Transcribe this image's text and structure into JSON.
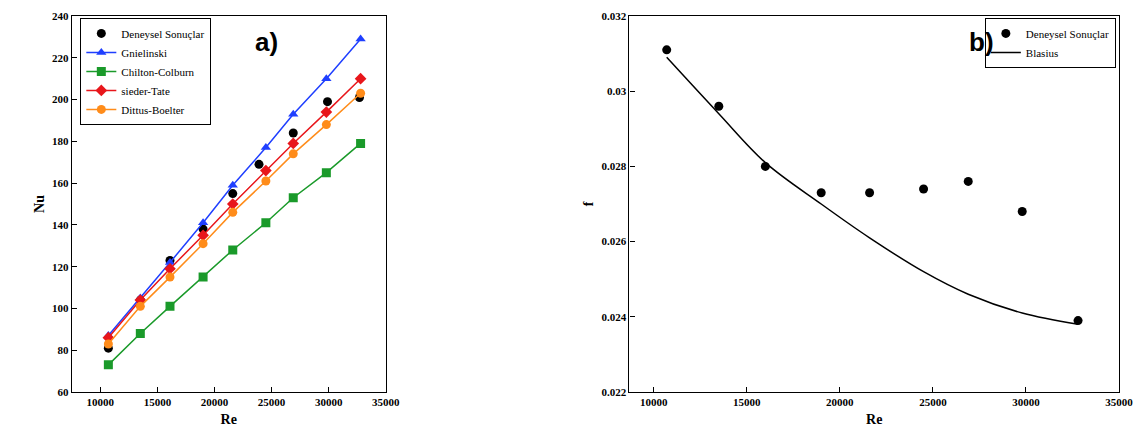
{
  "chart_data": [
    {
      "type": "line",
      "annotation": "a)",
      "x_label": "Re",
      "y_label": "Nu",
      "xlim": [
        7500,
        35000
      ],
      "xticks": [
        10000,
        15000,
        20000,
        25000,
        30000,
        35000
      ],
      "ylim": [
        60,
        240
      ],
      "yticks": [
        60,
        80,
        100,
        120,
        140,
        160,
        180,
        200,
        220,
        240
      ],
      "grid": false,
      "legend": "upper left",
      "series": [
        {
          "name": "Deneysel Sonuçlar",
          "color": "#000000",
          "marker": "circle",
          "line_style": "none",
          "x": [
            10700,
            13500,
            16100,
            19000,
            21600,
            23900,
            26900,
            29900,
            32700
          ],
          "values": [
            81,
            104,
            123,
            138,
            155,
            169,
            184,
            199,
            201
          ]
        },
        {
          "name": "Gnielinski",
          "color": "#1f3fff",
          "marker": "triangle-up",
          "line_style": "solid",
          "x": [
            10700,
            13500,
            16100,
            19000,
            21600,
            24500,
            26900,
            29800,
            32800
          ],
          "values": [
            87,
            105,
            122,
            141,
            159,
            177,
            193,
            210,
            229
          ]
        },
        {
          "name": "Chilton-Colburn",
          "color": "#1a9a2a",
          "marker": "square",
          "line_style": "solid",
          "x": [
            10700,
            13500,
            16100,
            19000,
            21600,
            24500,
            26900,
            29800,
            32800
          ],
          "values": [
            73,
            88,
            101,
            115,
            128,
            141,
            153,
            165,
            179
          ]
        },
        {
          "name": "sieder-Tate",
          "color": "#e8161b",
          "marker": "diamond",
          "line_style": "solid",
          "x": [
            10700,
            13500,
            16100,
            19000,
            21600,
            24500,
            26900,
            29800,
            32800
          ],
          "values": [
            86,
            104,
            119,
            135,
            150,
            166,
            179,
            194,
            210
          ]
        },
        {
          "name": "Dittus-Boelter",
          "color": "#ff8c1a",
          "marker": "circle",
          "line_style": "solid",
          "x": [
            10700,
            13500,
            16100,
            19000,
            21600,
            24500,
            26900,
            29800,
            32800
          ],
          "values": [
            83,
            101,
            115,
            131,
            146,
            161,
            174,
            188,
            203
          ]
        }
      ]
    },
    {
      "type": "line",
      "annotation": "b)",
      "x_label": "Re",
      "y_label": "f",
      "xlim": [
        8700,
        35000
      ],
      "xticks": [
        10000,
        15000,
        20000,
        25000,
        30000,
        35000
      ],
      "ylim": [
        0.022,
        0.032
      ],
      "yticks": [
        0.022,
        0.024,
        0.026,
        0.028,
        0.03,
        0.032
      ],
      "grid": false,
      "legend": "upper right",
      "series": [
        {
          "name": "Deneysel Sonuçlar",
          "color": "#000000",
          "marker": "circle",
          "line_style": "none",
          "x": [
            10700,
            13500,
            16000,
            19000,
            21600,
            24500,
            26900,
            29800,
            32800
          ],
          "values": [
            0.0311,
            0.0296,
            0.028,
            0.0273,
            0.0273,
            0.0274,
            0.0276,
            0.0268,
            0.0239
          ]
        },
        {
          "name": "Blasius",
          "color": "#000000",
          "marker": "none",
          "line_style": "solid",
          "x": [
            10700,
            13500,
            16000,
            19000,
            21600,
            24500,
            26900,
            29800,
            32800
          ],
          "values": [
            0.0309,
            0.0294,
            0.0281,
            0.027,
            0.0261,
            0.0252,
            0.0246,
            0.0241,
            0.0238
          ]
        }
      ]
    }
  ]
}
